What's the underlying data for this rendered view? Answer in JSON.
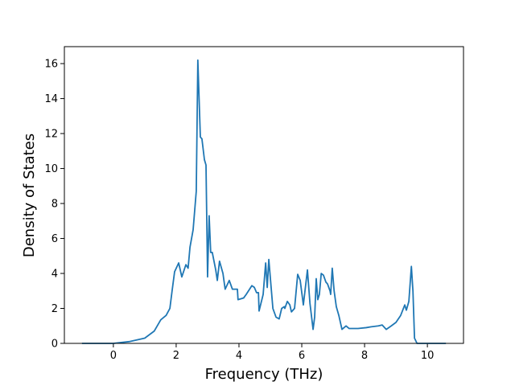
{
  "chart_data": {
    "type": "line",
    "xlabel": "Frequency (THz)",
    "ylabel": "Density of States",
    "color": "#1f77b4",
    "x": [
      -1,
      0,
      0.5,
      1.0,
      1.3,
      1.51,
      1.68,
      1.8,
      1.87,
      1.95,
      2.08,
      2.18,
      2.31,
      2.38,
      2.44,
      2.54,
      2.64,
      2.69,
      2.77,
      2.82,
      2.9,
      2.95,
      3.0,
      3.05,
      3.1,
      3.15,
      3.26,
      3.31,
      3.38,
      3.49,
      3.56,
      3.69,
      3.79,
      3.95,
      3.97,
      4.15,
      4.23,
      4.41,
      4.49,
      4.56,
      4.62,
      4.64,
      4.77,
      4.85,
      4.9,
      4.95,
      5.08,
      5.18,
      5.28,
      5.36,
      5.44,
      5.46,
      5.54,
      5.62,
      5.67,
      5.77,
      5.87,
      5.95,
      6.05,
      6.18,
      6.26,
      6.36,
      6.41,
      6.46,
      6.51,
      6.56,
      6.62,
      6.69,
      6.77,
      6.82,
      6.9,
      6.92,
      6.97,
      7.03,
      7.1,
      7.18,
      7.23,
      7.28,
      7.41,
      7.51,
      7.79,
      8.05,
      8.21,
      8.44,
      8.56,
      8.69,
      8.85,
      9.0,
      9.15,
      9.28,
      9.33,
      9.41,
      9.49,
      9.54,
      9.59,
      9.67,
      10.59
    ],
    "values": [
      0,
      0,
      0.1,
      0.3,
      0.7,
      1.35,
      1.6,
      2.0,
      3.0,
      4.1,
      4.6,
      3.8,
      4.5,
      4.3,
      5.5,
      6.5,
      8.7,
      16.2,
      11.8,
      11.7,
      10.5,
      10.2,
      3.8,
      7.3,
      5.2,
      5.2,
      4.2,
      3.6,
      4.7,
      4.0,
      3.1,
      3.6,
      3.1,
      3.1,
      2.5,
      2.6,
      2.8,
      3.3,
      3.2,
      2.9,
      2.9,
      1.85,
      2.8,
      4.6,
      3.2,
      4.8,
      2.0,
      1.5,
      1.4,
      2.0,
      2.1,
      2.0,
      2.4,
      2.2,
      1.8,
      2.0,
      3.95,
      3.6,
      2.2,
      4.2,
      2.3,
      0.8,
      1.5,
      3.7,
      2.5,
      2.8,
      4.0,
      3.9,
      3.5,
      3.4,
      3.0,
      2.8,
      4.3,
      3.0,
      2.1,
      1.6,
      1.2,
      0.8,
      1.0,
      0.85,
      0.85,
      0.9,
      0.95,
      1.0,
      1.05,
      0.8,
      1.0,
      1.2,
      1.6,
      2.2,
      1.9,
      2.4,
      4.4,
      3.0,
      0.3,
      0,
      0
    ],
    "xlim": [
      -1.56,
      11.15
    ],
    "xticks": [
      0,
      2,
      4,
      6,
      8,
      10
    ],
    "ylim": [
      0,
      16.97
    ],
    "yticks": [
      0,
      2,
      4,
      6,
      8,
      10,
      12,
      14,
      16
    ]
  }
}
